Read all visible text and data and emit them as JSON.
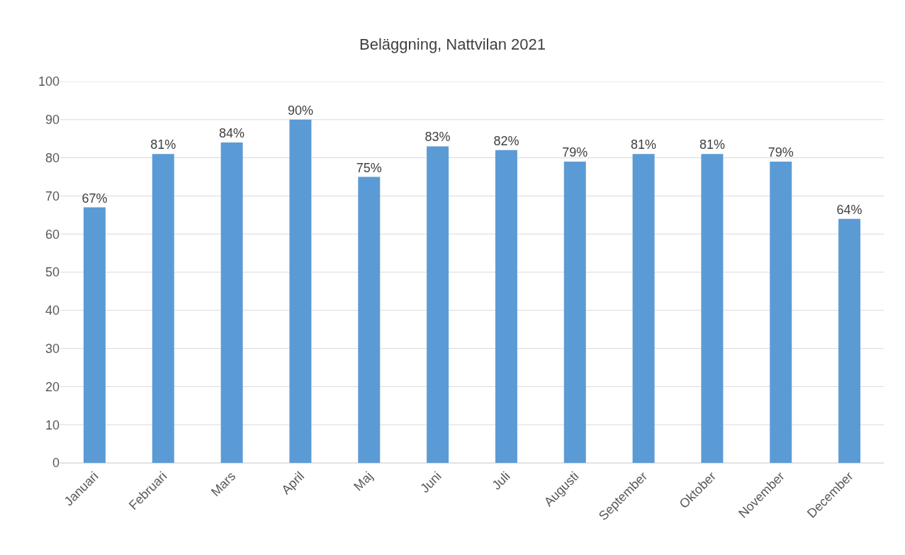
{
  "chart_data": {
    "type": "bar",
    "title": "Beläggning, Nattvilan 2021",
    "categories": [
      "Januari",
      "Februari",
      "Mars",
      "April",
      "Maj",
      "Juni",
      "Juli",
      "Augusti",
      "September",
      "Oktober",
      "November",
      "December"
    ],
    "values": [
      67,
      81,
      84,
      90,
      75,
      83,
      82,
      79,
      81,
      81,
      79,
      64
    ],
    "value_labels": [
      "67%",
      "81%",
      "84%",
      "90%",
      "75%",
      "83%",
      "82%",
      "79%",
      "81%",
      "81%",
      "79%",
      "64%"
    ],
    "color": "#5b9bd5",
    "ylim": [
      0,
      100
    ],
    "yticks": [
      0,
      10,
      20,
      30,
      40,
      50,
      60,
      70,
      80,
      90,
      100
    ],
    "grid": "y",
    "legend": false
  }
}
